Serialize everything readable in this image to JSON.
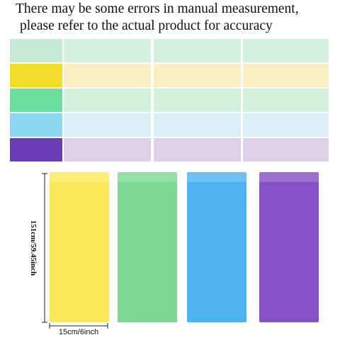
{
  "notice": {
    "line1": "There may be some errors in manual measurement,",
    "line2": "please refer to the actual product for accuracy"
  },
  "dimensions": {
    "length": "151cm/59.45inch",
    "width": "15cm/6inch"
  }
}
